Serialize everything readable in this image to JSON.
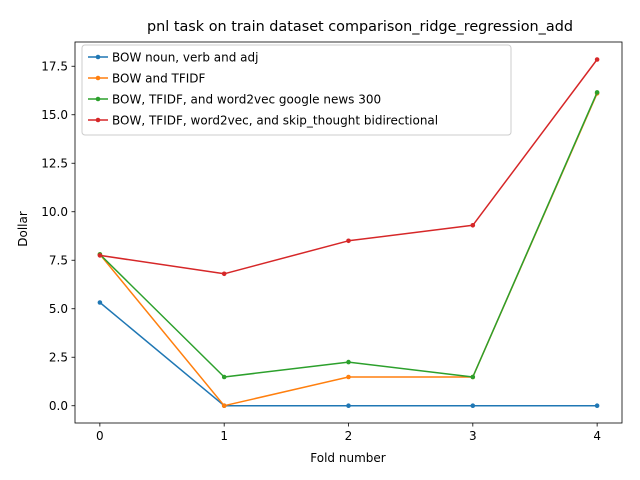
{
  "chart_data": {
    "type": "line",
    "title": "pnl task on train dataset comparison_ridge_regression_add",
    "xlabel": "Fold number",
    "ylabel": "Dollar",
    "x": [
      0,
      1,
      2,
      3,
      4
    ],
    "xticks": [
      "0",
      "1",
      "2",
      "3",
      "4"
    ],
    "xlim": [
      -0.2,
      4.2
    ],
    "ylim": [
      -0.89,
      18.75
    ],
    "yticks": [
      "0.0",
      "2.5",
      "5.0",
      "7.5",
      "10.0",
      "12.5",
      "15.0",
      "17.5"
    ],
    "ytick_values": [
      0,
      2.5,
      5,
      7.5,
      10,
      12.5,
      15,
      17.5
    ],
    "grid": false,
    "legend_position": "top-left",
    "series": [
      {
        "name": "BOW noun, verb and adj",
        "color": "#1f77b4",
        "values": [
          5.32,
          0.0,
          0.0,
          0.0,
          0.0
        ]
      },
      {
        "name": "BOW and TFIDF",
        "color": "#ff7f0e",
        "values": [
          7.8,
          0.0,
          1.48,
          1.48,
          16.1
        ]
      },
      {
        "name": "BOW, TFIDF, and word2vec google news 300",
        "color": "#2ca02c",
        "values": [
          7.8,
          1.48,
          2.25,
          1.48,
          16.15
        ]
      },
      {
        "name": "BOW, TFIDF, word2vec, and skip_thought bidirectional",
        "color": "#d62728",
        "values": [
          7.75,
          6.8,
          8.5,
          9.3,
          17.85
        ]
      }
    ]
  }
}
